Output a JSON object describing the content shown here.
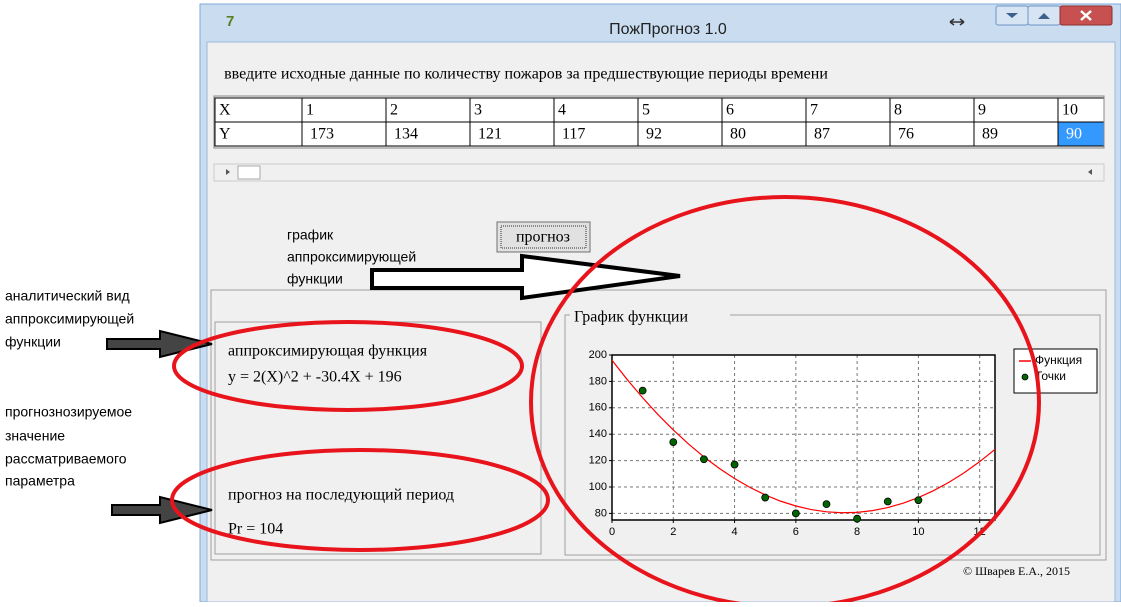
{
  "window": {
    "title": "ПожПрогноз 1.0"
  },
  "instruction": "введите исходные данные по количеству пожаров за  предшествующие периоды времени",
  "table": {
    "rows": [
      [
        "X",
        "1",
        "2",
        "3",
        "4",
        "5",
        "6",
        "7",
        "8",
        "9",
        "10"
      ],
      [
        "Y",
        "173",
        "134",
        "121",
        "117",
        "92",
        "80",
        "87",
        "76",
        "89",
        "90"
      ]
    ]
  },
  "chart_caption": [
    "график",
    "аппроксимирующей",
    "функции"
  ],
  "button": "прогноз",
  "formula_panel": {
    "heading": "аппроксимирующая функция",
    "formula": "y = 2(X)^2 + -30.4X + 196"
  },
  "forecast_panel": {
    "heading": "прогноз на последующий период",
    "value": "Pr = 104"
  },
  "annotations": [
    {
      "lines": [
        "аналитический вид",
        "аппроксимирующей",
        "функции"
      ]
    },
    {
      "lines": [
        "прогнознозируемое",
        "значение",
        "рассматриваемого",
        "параметра"
      ]
    }
  ],
  "copyright": "© Шварев Е.А., 2015",
  "chart_data": {
    "type": "line",
    "title": "График функции",
    "xlim": [
      0,
      12.5
    ],
    "ylim": [
      75,
      200
    ],
    "xticks": [
      0,
      2,
      4,
      6,
      8,
      10,
      12
    ],
    "yticks": [
      80,
      100,
      120,
      140,
      160,
      180,
      200
    ],
    "grid": true,
    "legend": "upper right",
    "series": [
      {
        "name": "Функция",
        "color": "#ff0000",
        "style": "line",
        "x": [
          0,
          0.5,
          1,
          1.5,
          2,
          2.5,
          3,
          3.5,
          4,
          4.5,
          5,
          5.5,
          6,
          6.5,
          7,
          7.5,
          8,
          8.5,
          9,
          9.5,
          10,
          10.5,
          11,
          11.5,
          12,
          12.5
        ],
        "values": [
          196,
          181.3,
          167.6,
          154.9,
          143.2,
          132.5,
          122.8,
          114.1,
          106.4,
          99.7,
          94,
          89.3,
          85.6,
          82.9,
          81.2,
          80.5,
          80.8,
          82.1,
          84.4,
          87.7,
          92,
          97.3,
          103.6,
          110.9,
          119.2,
          128.5
        ]
      },
      {
        "name": "Точки",
        "color": "#006400",
        "style": "markers",
        "x": [
          1,
          2,
          3,
          4,
          5,
          6,
          7,
          8,
          9,
          10
        ],
        "values": [
          173,
          134,
          121,
          117,
          92,
          80,
          87,
          76,
          89,
          90
        ]
      }
    ]
  }
}
